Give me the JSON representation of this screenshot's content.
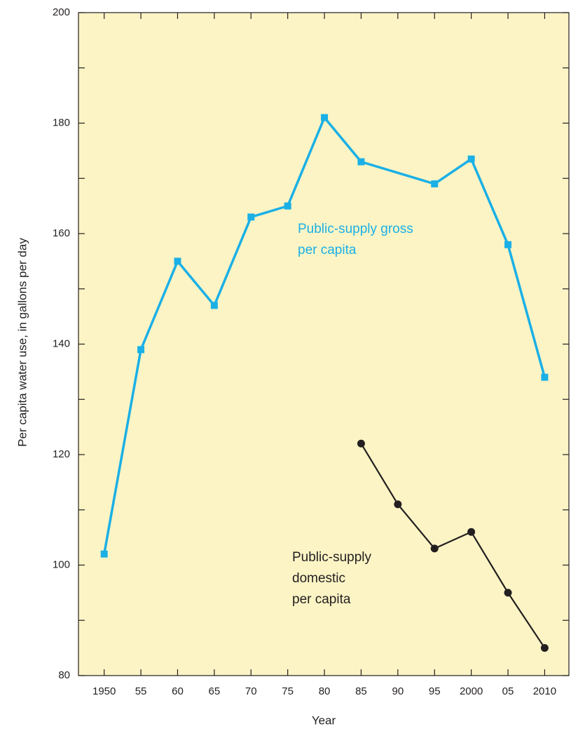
{
  "chart_data": {
    "type": "line",
    "xlabel": "Year",
    "ylabel": "Per capita water use, in gallons per day",
    "xlim": [
      1946.5,
      2013.3
    ],
    "xticks": [
      1950,
      {
        "value": 1955,
        "label": "55"
      },
      {
        "value": 1960,
        "label": "60"
      },
      {
        "value": 1965,
        "label": "65"
      },
      {
        "value": 1970,
        "label": "70"
      },
      {
        "value": 1975,
        "label": "75"
      },
      {
        "value": 1980,
        "label": "80"
      },
      {
        "value": 1985,
        "label": "85"
      },
      {
        "value": 1990,
        "label": "90"
      },
      {
        "value": 1995,
        "label": "95"
      },
      2000,
      {
        "value": 2005,
        "label": "05"
      },
      2010
    ],
    "ylim": [
      80,
      200
    ],
    "yticks": [
      80,
      100,
      120,
      140,
      160,
      180,
      200
    ],
    "yminor_ticks": [
      90,
      110,
      130,
      150,
      170,
      190
    ],
    "background": "#fcf4c5",
    "series": [
      {
        "name": "Public-supply gross per capita",
        "color": "#1ab0e6",
        "marker": "square",
        "x": [
          1950,
          1955,
          1960,
          1965,
          1970,
          1975,
          1980,
          1985,
          1995,
          2000,
          2005,
          2010
        ],
        "values": [
          102,
          139,
          155,
          147,
          163,
          165,
          181,
          173,
          169,
          173.5,
          158,
          134
        ]
      },
      {
        "name": "Public-supply domestic per capita",
        "color": "#231f20",
        "marker": "circle",
        "x": [
          1985,
          1990,
          1995,
          2000,
          2005,
          2010
        ],
        "values": [
          122,
          111,
          103,
          106,
          95,
          85
        ]
      }
    ],
    "annotations": [
      {
        "lines": [
          "Public-supply gross",
          "per capita"
        ],
        "color": "#1ab0e6"
      },
      {
        "lines": [
          "Public-supply",
          "domestic",
          "per capita"
        ],
        "color": "#231f20"
      }
    ]
  }
}
